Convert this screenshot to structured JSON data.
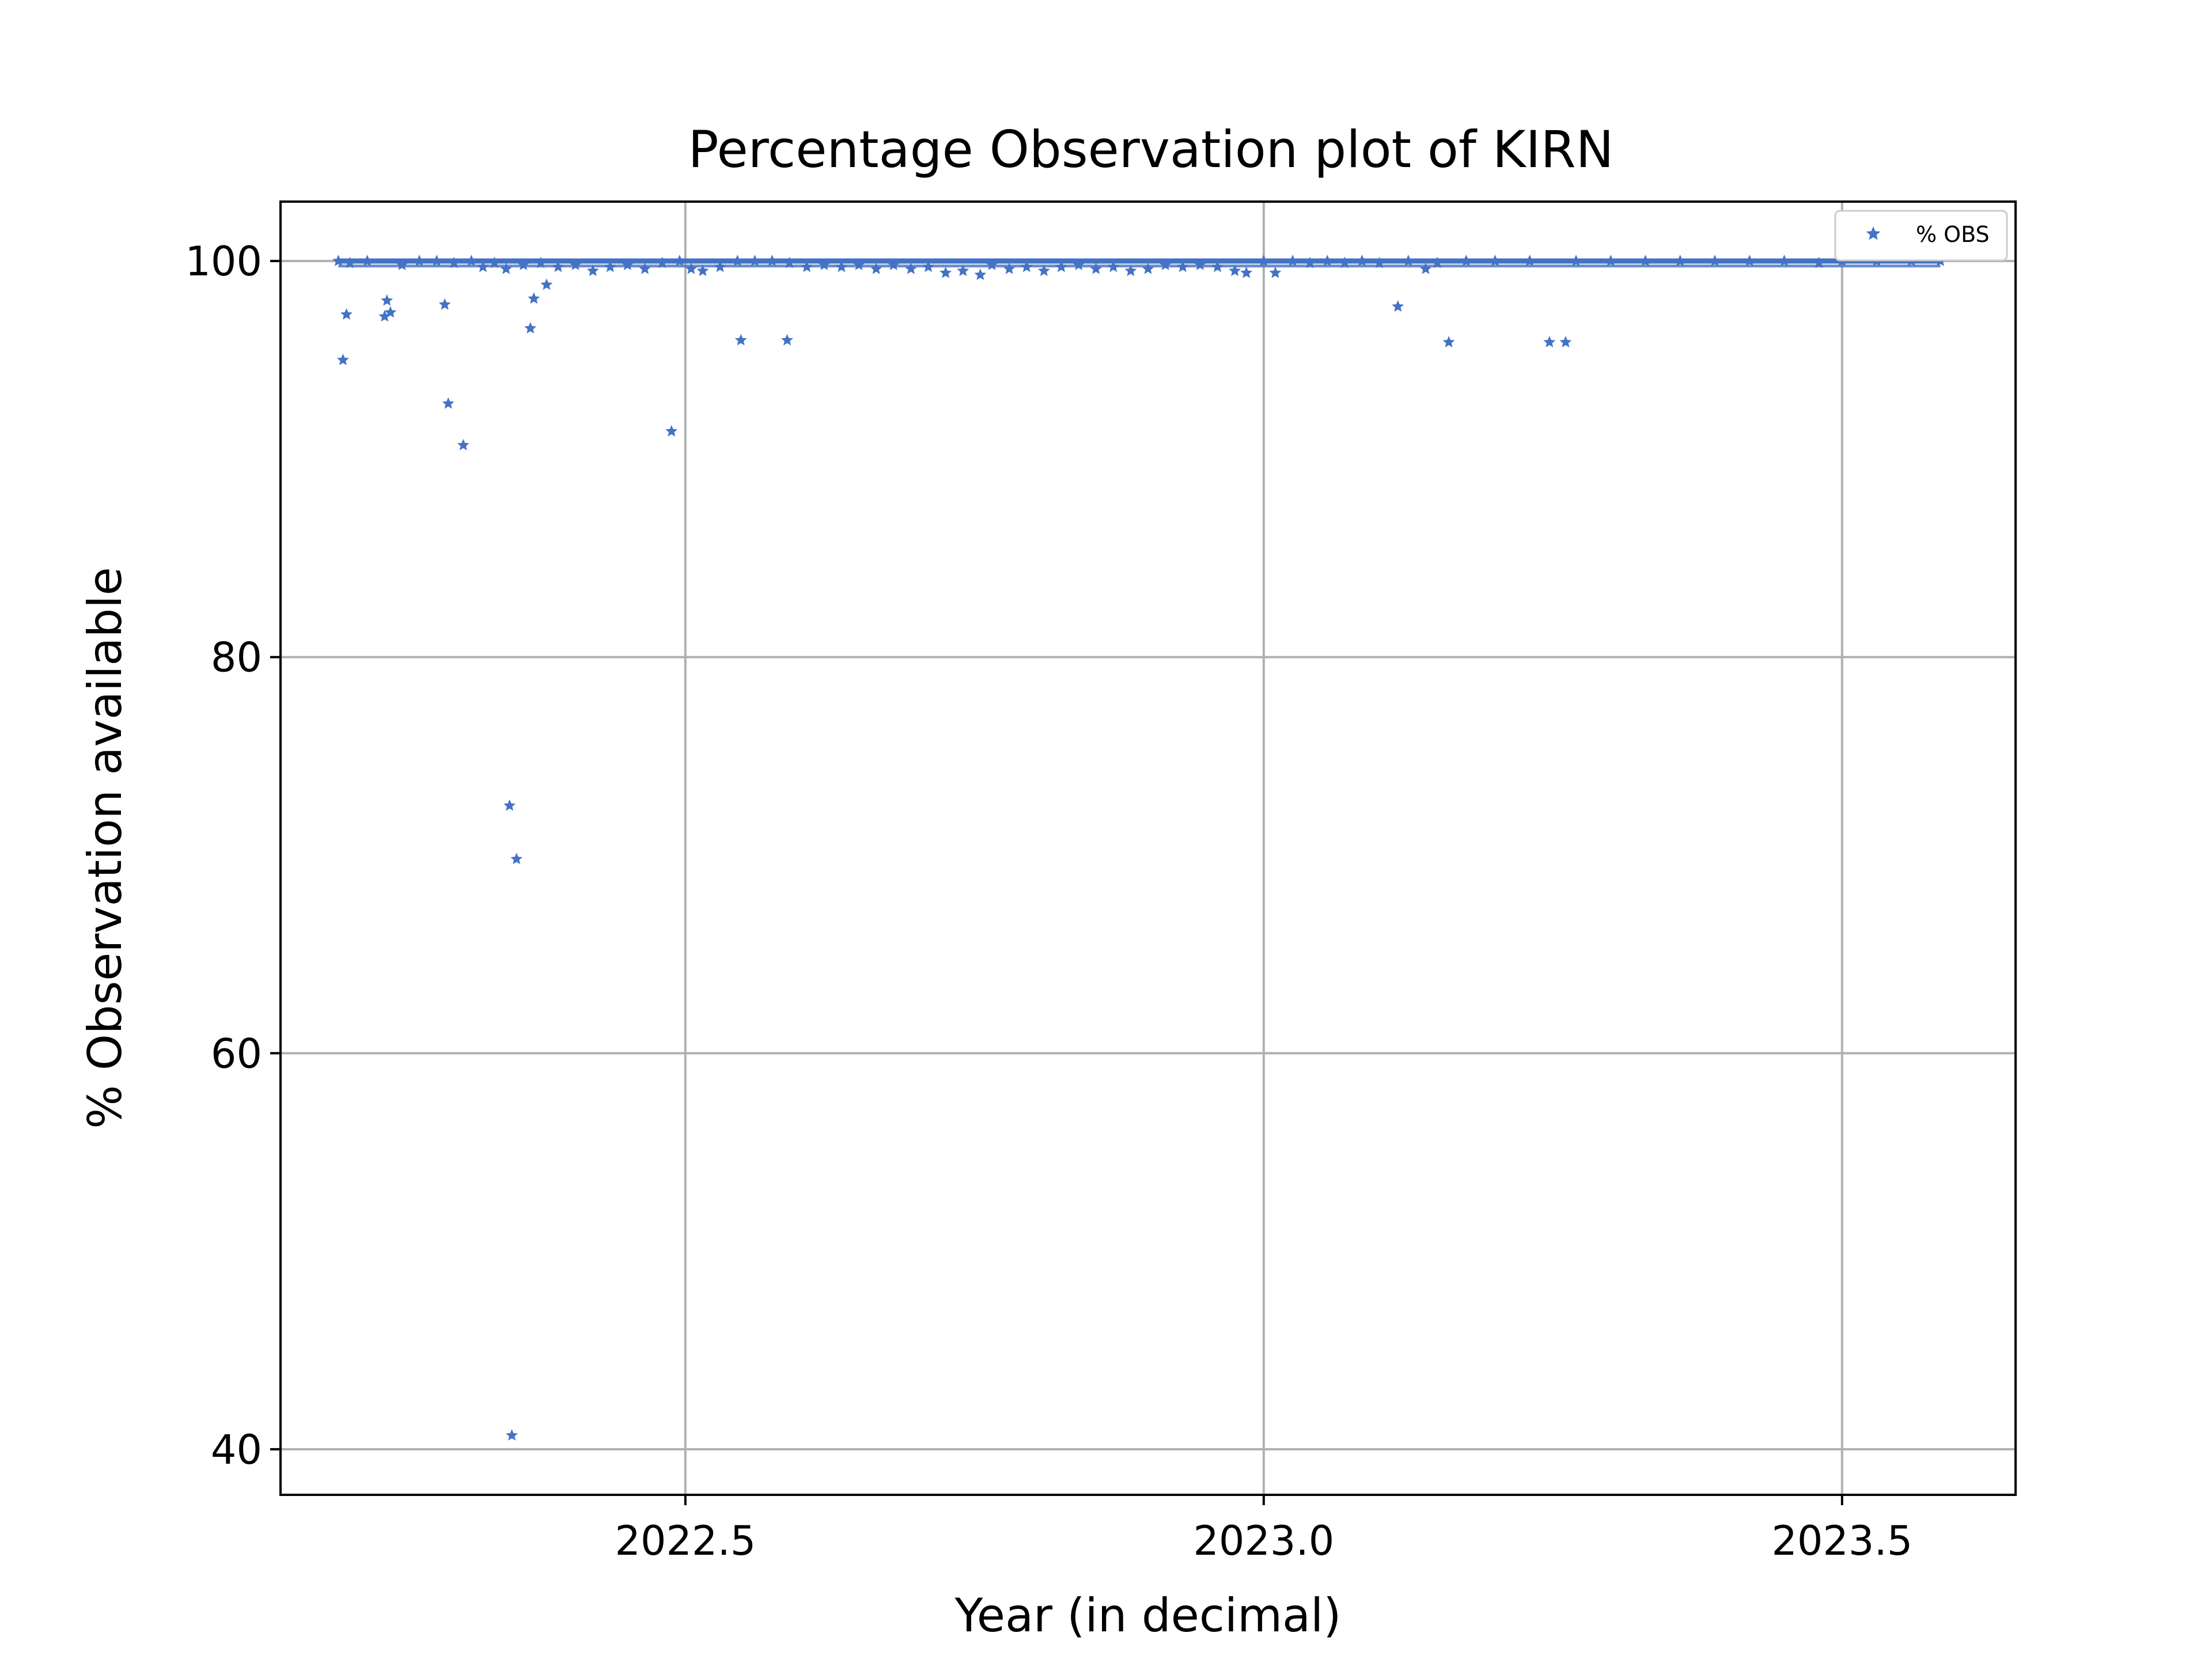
{
  "chart_data": {
    "type": "scatter",
    "title": "Percentage Observation plot of KIRN",
    "xlabel": "Year (in decimal)",
    "ylabel": "% Observation available",
    "xlim": [
      2022.15,
      2023.65
    ],
    "ylim": [
      37.7,
      103.0
    ],
    "x_ticks": [
      2022.5,
      2023.0,
      2023.5
    ],
    "x_tick_labels": [
      "2022.5",
      "2023.0",
      "2023.5"
    ],
    "y_ticks": [
      40,
      60,
      80,
      100
    ],
    "y_tick_labels": [
      "40",
      "60",
      "80",
      "100"
    ],
    "grid": true,
    "legend_position": "top-right",
    "marker": "star",
    "colors": {
      "series": "#4472c4",
      "grid": "#b0b0b0",
      "axes": "#000000"
    },
    "series": [
      {
        "name": "% OBS",
        "points": [
          [
            2022.204,
            95.0
          ],
          [
            2022.207,
            97.3
          ],
          [
            2022.24,
            97.2
          ],
          [
            2022.242,
            98.0
          ],
          [
            2022.245,
            97.4
          ],
          [
            2022.292,
            97.8
          ],
          [
            2022.295,
            92.8
          ],
          [
            2022.308,
            90.7
          ],
          [
            2022.348,
            72.5
          ],
          [
            2022.35,
            40.7
          ],
          [
            2022.354,
            69.8
          ],
          [
            2022.366,
            96.6
          ],
          [
            2022.369,
            98.1
          ],
          [
            2022.38,
            98.8
          ],
          [
            2022.488,
            91.4
          ],
          [
            2022.548,
            96.0
          ],
          [
            2022.588,
            96.0
          ],
          [
            2023.116,
            97.7
          ],
          [
            2023.16,
            95.9
          ],
          [
            2023.247,
            95.9
          ],
          [
            2023.261,
            95.9
          ],
          [
            2022.2,
            100.0
          ],
          [
            2022.21,
            99.9
          ],
          [
            2022.225,
            100.0
          ],
          [
            2022.255,
            99.8
          ],
          [
            2022.27,
            100.0
          ],
          [
            2022.285,
            100.0
          ],
          [
            2022.3,
            99.9
          ],
          [
            2022.315,
            100.0
          ],
          [
            2022.325,
            99.7
          ],
          [
            2022.335,
            99.9
          ],
          [
            2022.345,
            99.6
          ],
          [
            2022.36,
            99.8
          ],
          [
            2022.375,
            99.9
          ],
          [
            2022.39,
            99.7
          ],
          [
            2022.405,
            99.8
          ],
          [
            2022.42,
            99.5
          ],
          [
            2022.435,
            99.7
          ],
          [
            2022.45,
            99.8
          ],
          [
            2022.465,
            99.6
          ],
          [
            2022.48,
            99.9
          ],
          [
            2022.495,
            100.0
          ],
          [
            2022.505,
            99.6
          ],
          [
            2022.515,
            99.5
          ],
          [
            2022.53,
            99.7
          ],
          [
            2022.545,
            100.0
          ],
          [
            2022.56,
            100.0
          ],
          [
            2022.575,
            100.0
          ],
          [
            2022.59,
            99.9
          ],
          [
            2022.605,
            99.7
          ],
          [
            2022.62,
            99.8
          ],
          [
            2022.635,
            99.7
          ],
          [
            2022.65,
            99.8
          ],
          [
            2022.665,
            99.6
          ],
          [
            2022.68,
            99.8
          ],
          [
            2022.695,
            99.6
          ],
          [
            2022.71,
            99.7
          ],
          [
            2022.725,
            99.4
          ],
          [
            2022.74,
            99.5
          ],
          [
            2022.755,
            99.3
          ],
          [
            2022.765,
            99.8
          ],
          [
            2022.78,
            99.6
          ],
          [
            2022.795,
            99.7
          ],
          [
            2022.81,
            99.5
          ],
          [
            2022.825,
            99.7
          ],
          [
            2022.84,
            99.8
          ],
          [
            2022.855,
            99.6
          ],
          [
            2022.87,
            99.7
          ],
          [
            2022.885,
            99.5
          ],
          [
            2022.9,
            99.6
          ],
          [
            2022.915,
            99.8
          ],
          [
            2022.93,
            99.7
          ],
          [
            2022.945,
            99.8
          ],
          [
            2022.96,
            99.7
          ],
          [
            2022.975,
            99.5
          ],
          [
            2022.985,
            99.4
          ],
          [
            2023.0,
            100.0
          ],
          [
            2023.01,
            99.4
          ],
          [
            2023.025,
            100.0
          ],
          [
            2023.04,
            99.9
          ],
          [
            2023.055,
            100.0
          ],
          [
            2023.07,
            99.9
          ],
          [
            2023.085,
            100.0
          ],
          [
            2023.1,
            99.9
          ],
          [
            2023.125,
            100.0
          ],
          [
            2023.14,
            99.6
          ],
          [
            2023.15,
            99.9
          ],
          [
            2023.175,
            100.0
          ],
          [
            2023.2,
            100.0
          ],
          [
            2023.23,
            100.0
          ],
          [
            2023.27,
            100.0
          ],
          [
            2023.3,
            100.0
          ],
          [
            2023.33,
            100.0
          ],
          [
            2023.36,
            100.0
          ],
          [
            2023.39,
            100.0
          ],
          [
            2023.42,
            100.0
          ],
          [
            2023.45,
            100.0
          ],
          [
            2023.48,
            99.9
          ],
          [
            2023.5,
            100.0
          ],
          [
            2023.53,
            100.0
          ],
          [
            2023.56,
            100.0
          ],
          [
            2023.585,
            100.0
          ]
        ]
      }
    ]
  }
}
